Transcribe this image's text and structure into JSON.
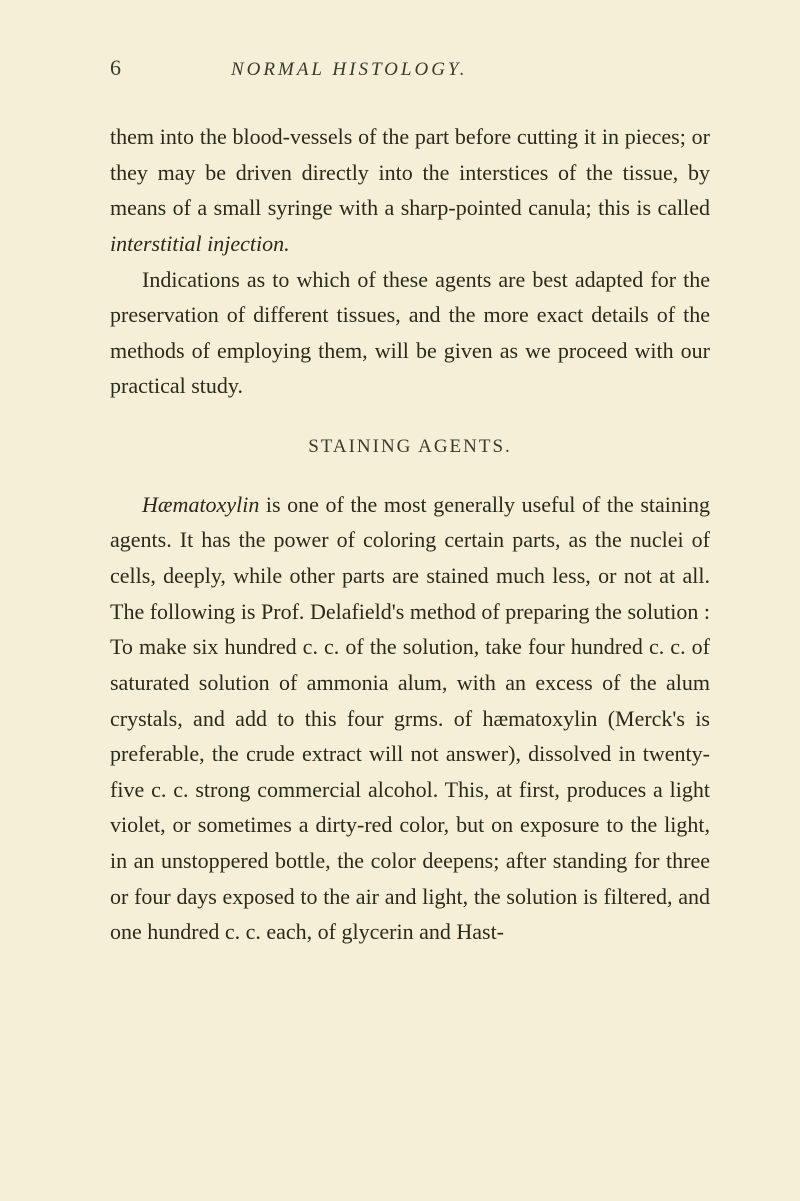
{
  "page": {
    "number": "6",
    "running_title": "NORMAL HISTOLOGY.",
    "background_color": "#f5efd8",
    "text_color": "#2a2a18",
    "font_family": "Georgia, serif",
    "body_fontsize": 22,
    "heading_fontsize": 19,
    "line_height": 1.62
  },
  "paragraphs": {
    "p1": "them into the blood-vessels of the part before cutting it in pieces; or they may be driven directly into the interstices of the tissue, by means of a small syringe with a sharp-pointed canula; this is called ",
    "p1_italic": "interstitial injection.",
    "p2": "Indications as to which of these agents are best adapted for the preservation of different tissues, and the more exact details of the methods of employing them, will be given as we proceed with our practical study.",
    "heading": "STAINING AGENTS.",
    "p3_italic": "Hæmatoxylin",
    "p3": " is one of the most generally useful of the staining agents. It has the power of coloring certain parts, as the nuclei of cells, deeply, while other parts are stained much less, or not at all. The following is Prof. Delafield's method of preparing the solution : To make six hundred c. c. of the solution, take four hundred c. c. of saturated solution of ammonia alum, with an excess of the alum crystals, and add to this four grms. of hæmatoxylin (Merck's is preferable, the crude extract will not answer), dissolved in twenty-five c. c. strong commercial alcohol. This, at first, produces a light violet, or sometimes a dirty-red color, but on exposure to the light, in an unstoppered bottle, the color deepens; after standing for three or four days exposed to the air and light, the solution is filtered, and one hundred c. c. each, of glycerin and Hast-"
  }
}
